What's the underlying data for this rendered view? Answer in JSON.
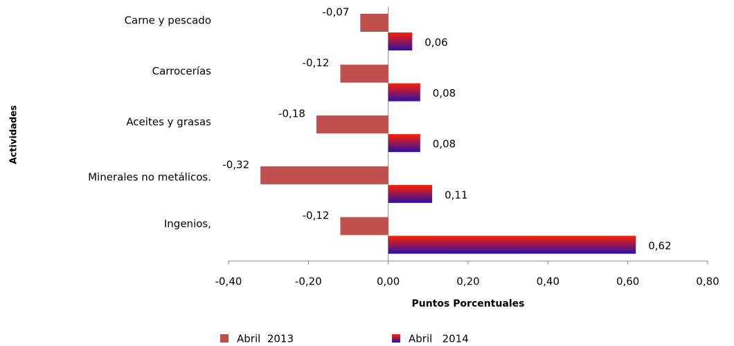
{
  "chart_data": {
    "type": "hbar",
    "x_label": "Puntos Porcentuales",
    "y_label": "Actividades",
    "categories": [
      "Carne y pescado",
      "Carrocerías",
      "Aceites y grasas",
      "Minerales no metálicos.",
      "Ingenios,"
    ],
    "series": [
      {
        "name": "Abril  2013",
        "color": "#c0504d",
        "values": [
          -0.07,
          -0.12,
          -0.18,
          -0.32,
          -0.12
        ],
        "value_labels": [
          "-0,07",
          "-0,12",
          "-0,18",
          "-0,32",
          "-0,12"
        ]
      },
      {
        "name": "Abril   2014",
        "color": "#5a1a9a",
        "gradient_colors": [
          "#ff2000",
          "#2a10a8"
        ],
        "values": [
          0.06,
          0.08,
          0.08,
          0.11,
          0.62
        ],
        "value_labels": [
          "0,06",
          "0,08",
          "0,08",
          "0,11",
          "0,62"
        ]
      }
    ],
    "xlim": [
      -0.4,
      0.8
    ],
    "xticks": [
      {
        "value": -0.4,
        "label": "-0,40"
      },
      {
        "value": -0.2,
        "label": "-0,20"
      },
      {
        "value": 0,
        "label": "0,00"
      },
      {
        "value": 0.2,
        "label": "0,20"
      },
      {
        "value": 0.4,
        "label": "0,40"
      },
      {
        "value": 0.6,
        "label": "0,60"
      },
      {
        "value": 0.8,
        "label": "0,80"
      }
    ],
    "grid": false,
    "legend": "bottom"
  }
}
